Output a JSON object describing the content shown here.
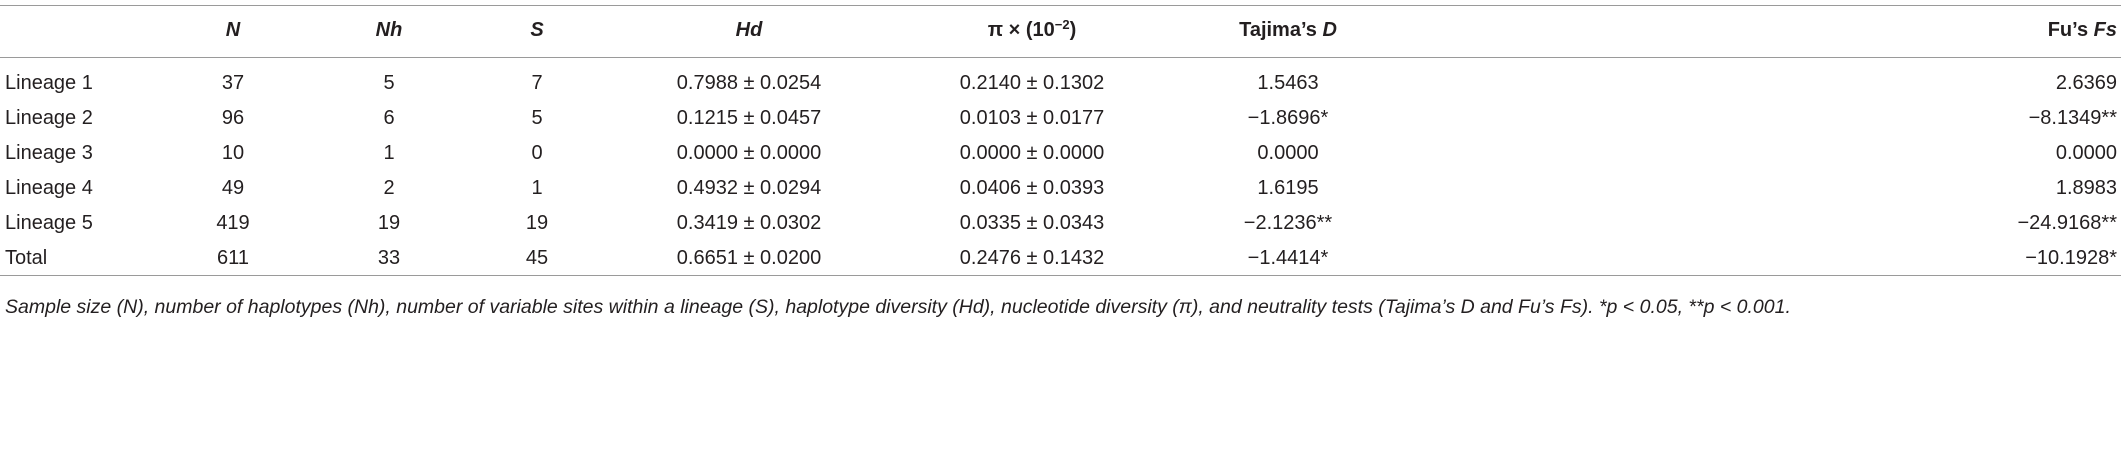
{
  "table": {
    "header": [
      [
        {
          "t": "N",
          "i": true
        }
      ],
      [
        {
          "t": "Nh",
          "i": true
        }
      ],
      [
        {
          "t": "S",
          "i": true
        }
      ],
      [
        {
          "t": "Hd",
          "i": true
        }
      ],
      [
        {
          "t": "π × (10"
        },
        {
          "t": "−2",
          "sup": true
        },
        {
          "t": ")"
        }
      ],
      [
        {
          "t": "Tajima’s "
        },
        {
          "t": "D",
          "i": true
        }
      ],
      [
        {
          "t": "Fu’s "
        },
        {
          "t": "Fs",
          "i": true
        }
      ]
    ],
    "rows": [
      [
        "Lineage 1",
        "37",
        "5",
        "7",
        "0.7988 ± 0.0254",
        "0.2140 ± 0.1302",
        "1.5463",
        "2.6369"
      ],
      [
        "Lineage 2",
        "96",
        "6",
        "5",
        "0.1215 ± 0.0457",
        "0.0103 ± 0.0177",
        "−1.8696*",
        "−8.1349**"
      ],
      [
        "Lineage 3",
        "10",
        "1",
        "0",
        "0.0000 ± 0.0000",
        "0.0000 ± 0.0000",
        "0.0000",
        "0.0000"
      ],
      [
        "Lineage 4",
        "49",
        "2",
        "1",
        "0.4932 ± 0.0294",
        "0.0406 ± 0.0393",
        "1.6195",
        "1.8983"
      ],
      [
        "Lineage 5",
        "419",
        "19",
        "19",
        "0.3419 ± 0.0302",
        "0.0335 ± 0.0343",
        "−2.1236**",
        "−24.9168**"
      ],
      [
        "Total",
        "611",
        "33",
        "45",
        "0.6651 ± 0.0200",
        "0.2476 ± 0.1432",
        "−1.4414*",
        "−10.1928*"
      ]
    ],
    "footnote": "Sample size (N), number of haplotypes (Nh), number of variable sites within a lineage (S), haplotype diversity (Hd), nucleotide diversity (π), and neutrality tests (Tajima’s D and Fu’s Fs). *p < 0.05, **p < 0.001."
  }
}
